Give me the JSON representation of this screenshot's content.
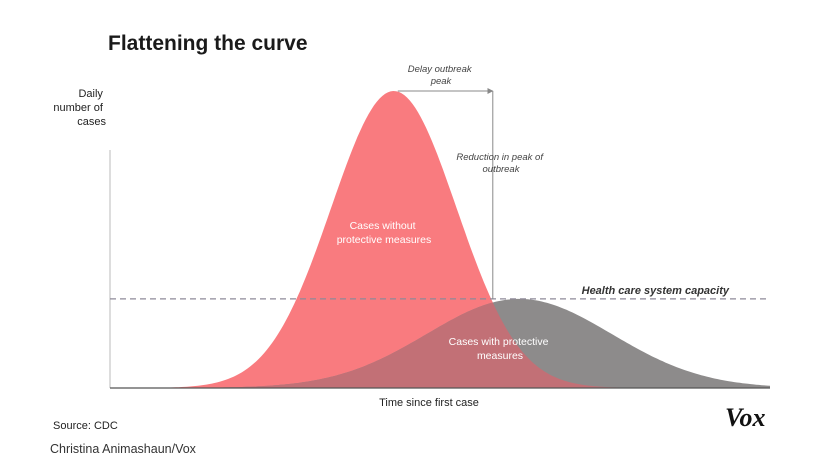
{
  "chart_data": {
    "type": "area",
    "title": "Flattening the curve",
    "ylabel": [
      "Daily",
      "number of",
      "cases"
    ],
    "xlabel": "Time since first case",
    "series": [
      {
        "name": "Cases without protective measures",
        "label_lines": [
          "Cases without",
          "protective measures"
        ],
        "peak_x": 0.43,
        "peak_y": 1.0,
        "spread": 0.095,
        "color": "#f97b7f"
      },
      {
        "name": "Cases with protective measures",
        "label_lines": [
          "Cases with protective",
          "measures"
        ],
        "peak_x": 0.62,
        "peak_y": 0.3,
        "spread": 0.14,
        "color": "#8d8b8b"
      }
    ],
    "overlap_color": "#c27076",
    "capacity": {
      "label": "Health care system capacity",
      "value": 0.3,
      "color": "#8e8a99"
    },
    "annotations": {
      "delay": [
        "Delay outbreak",
        "peak"
      ],
      "reduction": [
        "Reduction in peak of",
        "outbreak"
      ]
    },
    "source": "Source: CDC",
    "brand": "Vox"
  },
  "credit": "Christina Animashaun/Vox"
}
